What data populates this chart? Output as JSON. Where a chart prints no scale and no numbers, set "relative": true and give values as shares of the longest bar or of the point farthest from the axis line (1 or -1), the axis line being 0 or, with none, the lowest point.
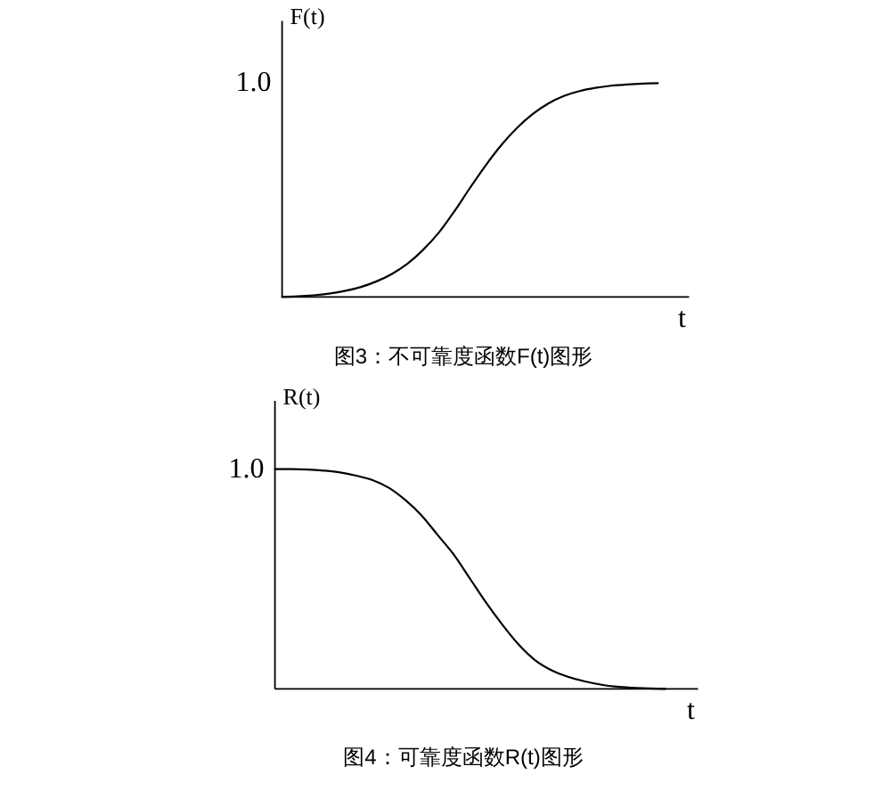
{
  "chart_data": [
    {
      "type": "line",
      "relative": true,
      "title": "图3：不可靠度函数F(t)图形",
      "ylabel": "F(t)",
      "xlabel": "t",
      "color": "#000000",
      "categories": [
        null,
        null,
        null,
        null,
        null,
        null,
        null,
        null,
        null,
        null,
        null,
        null,
        null,
        null,
        null,
        null,
        null,
        null,
        null,
        null,
        null,
        null,
        null,
        null,
        null,
        null,
        null
      ],
      "values": [
        0,
        0.003,
        0.008,
        0.016,
        0.028,
        0.046,
        0.072,
        0.107,
        0.155,
        0.22,
        0.3,
        0.4,
        0.51,
        0.615,
        0.71,
        0.79,
        0.855,
        0.905,
        0.94,
        0.963,
        0.978,
        0.988,
        0.994,
        0.998,
        1,
        null,
        null
      ],
      "annotations": [
        "1.0"
      ]
    },
    {
      "type": "line",
      "relative": true,
      "title": "图4：可靠度函数R(t)图形",
      "ylabel": "R(t)",
      "xlabel": "t",
      "color": "#000000",
      "categories": [
        null,
        null,
        null,
        null,
        null,
        null,
        null,
        null,
        null,
        null,
        null,
        null,
        null,
        null,
        null,
        null,
        null,
        null,
        null,
        null,
        null,
        null,
        null,
        null,
        null,
        null,
        null
      ],
      "values": [
        1,
        1,
        0.998,
        0.993,
        0.985,
        0.97,
        0.95,
        0.915,
        0.86,
        0.79,
        0.7,
        0.61,
        0.5,
        0.39,
        0.29,
        0.2,
        0.13,
        0.085,
        0.055,
        0.035,
        0.02,
        0.01,
        0.005,
        0.002,
        0,
        null,
        null
      ],
      "annotations": [
        "1.0"
      ]
    }
  ]
}
